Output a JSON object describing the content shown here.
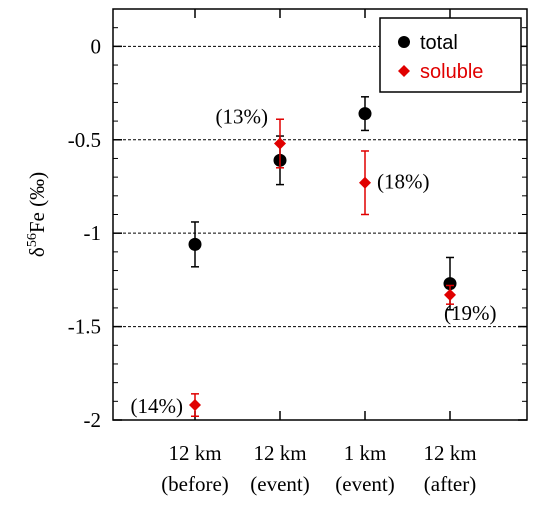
{
  "chart_data": {
    "type": "scatter",
    "title": "",
    "xlabel": "",
    "ylabel": "δ56Fe (‰)",
    "ylim": [
      -2,
      0.2
    ],
    "yticks": [
      0,
      -0.5,
      -1,
      -1.5,
      -2
    ],
    "ytick_labels": [
      "0",
      "-0.5",
      "-1",
      "-1.5",
      "-2"
    ],
    "grid_lines_y": [
      0,
      -0.5,
      -1,
      -1.5
    ],
    "categories": [
      {
        "line1": "12 km",
        "line2": "(before)"
      },
      {
        "line1": "12 km",
        "line2": "(event)"
      },
      {
        "line1": "1 km",
        "line2": "(event)"
      },
      {
        "line1": "12 km",
        "line2": "(after)"
      }
    ],
    "legend_position": "top-right",
    "series": [
      {
        "name": "total",
        "marker": "circle",
        "color": "#000000",
        "values": [
          -1.06,
          -0.61,
          -0.36,
          -1.27
        ],
        "errors": [
          0.12,
          0.13,
          0.09,
          0.14
        ]
      },
      {
        "name": "soluble",
        "marker": "diamond",
        "color": "#e00000",
        "values": [
          -1.92,
          -0.52,
          -0.73,
          -1.33
        ],
        "errors": [
          0.06,
          0.13,
          0.17,
          0.05
        ],
        "annotations": [
          "(14%)",
          "(13%)",
          "(18%)",
          "(19%)"
        ]
      }
    ]
  }
}
